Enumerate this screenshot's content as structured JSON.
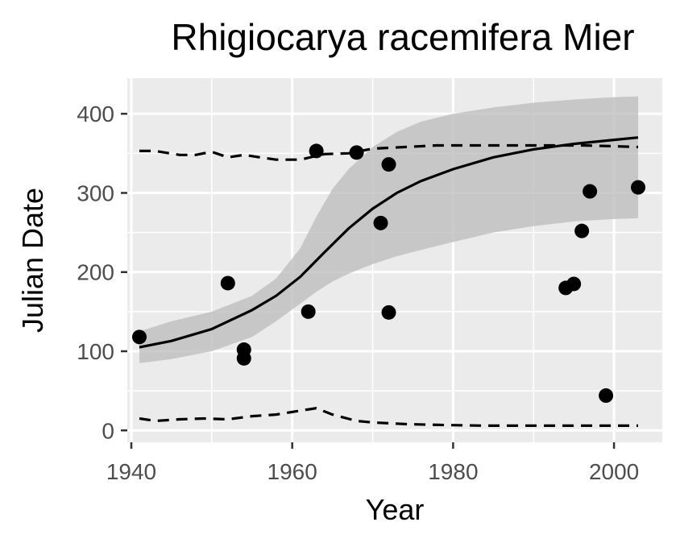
{
  "chart_data": {
    "type": "scatter",
    "title": "Rhigiocarya racemifera Mier",
    "xlabel": "Year",
    "ylabel": "Julian Date",
    "xlim": [
      1939.5,
      2006
    ],
    "ylim": [
      -15,
      445
    ],
    "x_ticks": [
      1940,
      1960,
      1980,
      2000
    ],
    "y_ticks": [
      0,
      100,
      200,
      300,
      400
    ],
    "x_tick_labels": [
      "1940",
      "1960",
      "1980",
      "2000"
    ],
    "y_tick_labels": [
      "0",
      "100",
      "200",
      "300",
      "400"
    ],
    "grid": true,
    "legend": "none",
    "colors": {
      "panel": "#ebebeb",
      "grid": "#ffffff",
      "ribbon": "#bebebe",
      "points": "#000000",
      "lines": "#000000"
    },
    "points": {
      "x": [
        1941,
        1952,
        1954,
        1954,
        1962,
        1963,
        1968,
        1971,
        1972,
        1972,
        1994,
        1995,
        1996,
        1997,
        1999,
        2003
      ],
      "y": [
        118,
        186,
        102,
        91,
        150,
        353,
        351,
        262,
        336,
        149,
        180,
        185,
        252,
        302,
        44,
        307
      ]
    },
    "fit": {
      "x": [
        1941,
        1945,
        1950,
        1955,
        1958,
        1961,
        1964,
        1967,
        1970,
        1973,
        1976,
        1980,
        1985,
        1990,
        1995,
        2000,
        2003
      ],
      "y": [
        105,
        113,
        128,
        152,
        170,
        194,
        225,
        255,
        280,
        300,
        315,
        330,
        345,
        355,
        362,
        367,
        370
      ]
    },
    "ribbon": {
      "x": [
        1941,
        1945,
        1950,
        1955,
        1958,
        1961,
        1963,
        1965,
        1967,
        1970,
        1973,
        1976,
        1980,
        1985,
        1990,
        1995,
        2000,
        2003
      ],
      "upper": [
        125,
        138,
        150,
        170,
        192,
        230,
        270,
        305,
        330,
        358,
        377,
        390,
        400,
        408,
        414,
        418,
        421,
        422
      ],
      "lower": [
        85,
        90,
        100,
        118,
        138,
        160,
        175,
        188,
        198,
        210,
        220,
        228,
        238,
        250,
        258,
        264,
        267,
        268
      ]
    },
    "upper_bound": {
      "x": [
        1941,
        1943,
        1946,
        1948,
        1950,
        1952,
        1954,
        1956,
        1958,
        1961,
        1964,
        1967,
        1970,
        1974,
        1978,
        1984,
        1990,
        1996,
        2000,
        2003
      ],
      "y": [
        353,
        353,
        348,
        348,
        352,
        345,
        348,
        345,
        342,
        342,
        349,
        350,
        356,
        358,
        360,
        360,
        360,
        360,
        359,
        358
      ]
    },
    "lower_bound": {
      "x": [
        1941,
        1943,
        1946,
        1949,
        1952,
        1955,
        1958,
        1961,
        1963,
        1965,
        1968,
        1970,
        1974,
        1978,
        1984,
        1990,
        1996,
        2000,
        2003
      ],
      "y": [
        15,
        12,
        14,
        15,
        14,
        18,
        20,
        25,
        28,
        20,
        12,
        10,
        8,
        7,
        6,
        6,
        6,
        6,
        6
      ]
    }
  }
}
